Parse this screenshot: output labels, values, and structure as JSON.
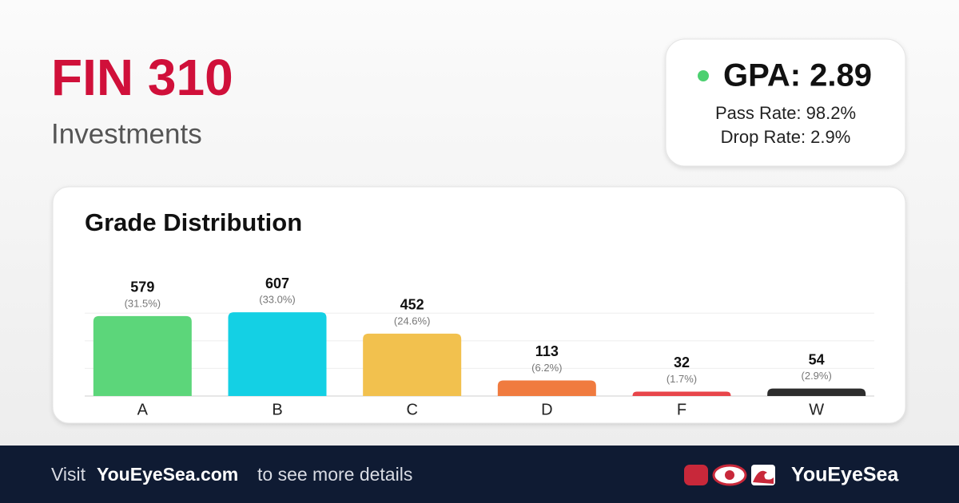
{
  "header": {
    "title": "FIN 310",
    "subtitle": "Investments"
  },
  "stats": {
    "gpa": "GPA: 2.89",
    "pass_rate": "Pass Rate: 98.2%",
    "drop_rate": "Drop Rate: 2.9%"
  },
  "chart_data": {
    "type": "bar",
    "title": "Grade Distribution",
    "categories": [
      "A",
      "B",
      "C",
      "D",
      "F",
      "W"
    ],
    "values": [
      579,
      607,
      452,
      113,
      32,
      54
    ],
    "percent_labels": [
      "(31.5%)",
      "(33.0%)",
      "(24.6%)",
      "(6.2%)",
      "(1.7%)",
      "(2.9%)"
    ],
    "colors": [
      "#5cd67a",
      "#14d0e4",
      "#f2c14e",
      "#f07b3f",
      "#e8454a",
      "#2d2d2d"
    ],
    "ylim": [
      0,
      700
    ],
    "yticks": [
      0,
      200,
      400,
      600
    ],
    "grid": true
  },
  "footer": {
    "visit": "Visit",
    "site": "YouEyeSea.com",
    "rest": "to see more details",
    "brand": "YouEyeSea"
  }
}
